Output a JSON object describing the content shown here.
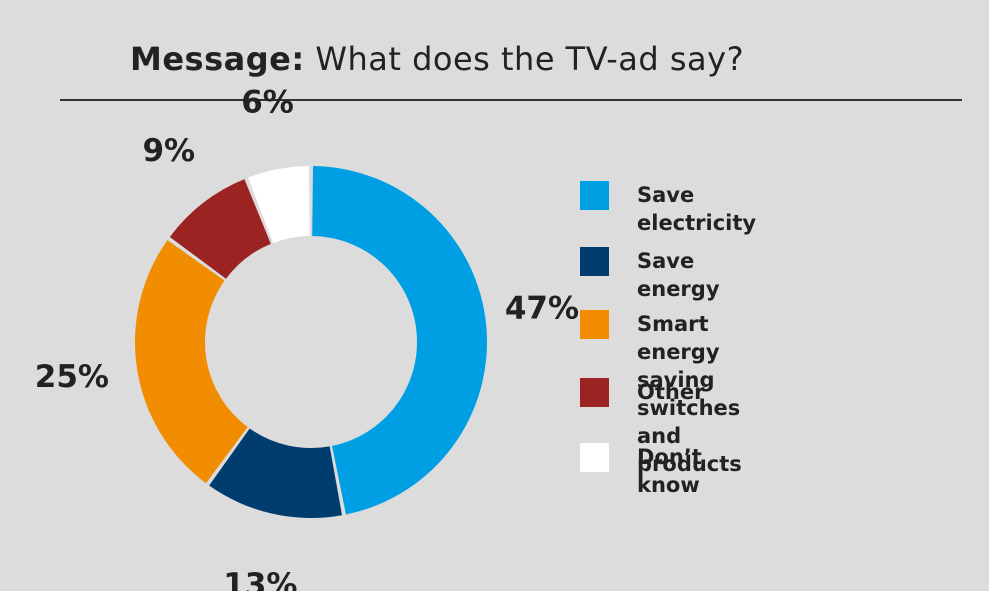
{
  "title": {
    "bold": "Message:",
    "rest": " What does the TV-ad say?"
  },
  "chart_data": {
    "type": "pie",
    "donut": true,
    "title": "Message: What does the TV-ad say?",
    "slices": [
      {
        "label": "Save electricity",
        "value": 47,
        "display": "47%",
        "color": "#009fe3"
      },
      {
        "label": "Save energy",
        "value": 13,
        "display": "13%",
        "color": "#003d6e"
      },
      {
        "label": "Smart energy saving\nswitches and products",
        "value": 25,
        "display": "25%",
        "color": "#f28c00"
      },
      {
        "label": "Other",
        "value": 9,
        "display": "9%",
        "color": "#9b2423"
      },
      {
        "label": "Don’t know",
        "value": 6,
        "display": "6%",
        "color": "#ffffff"
      }
    ],
    "legend_position": "right"
  }
}
